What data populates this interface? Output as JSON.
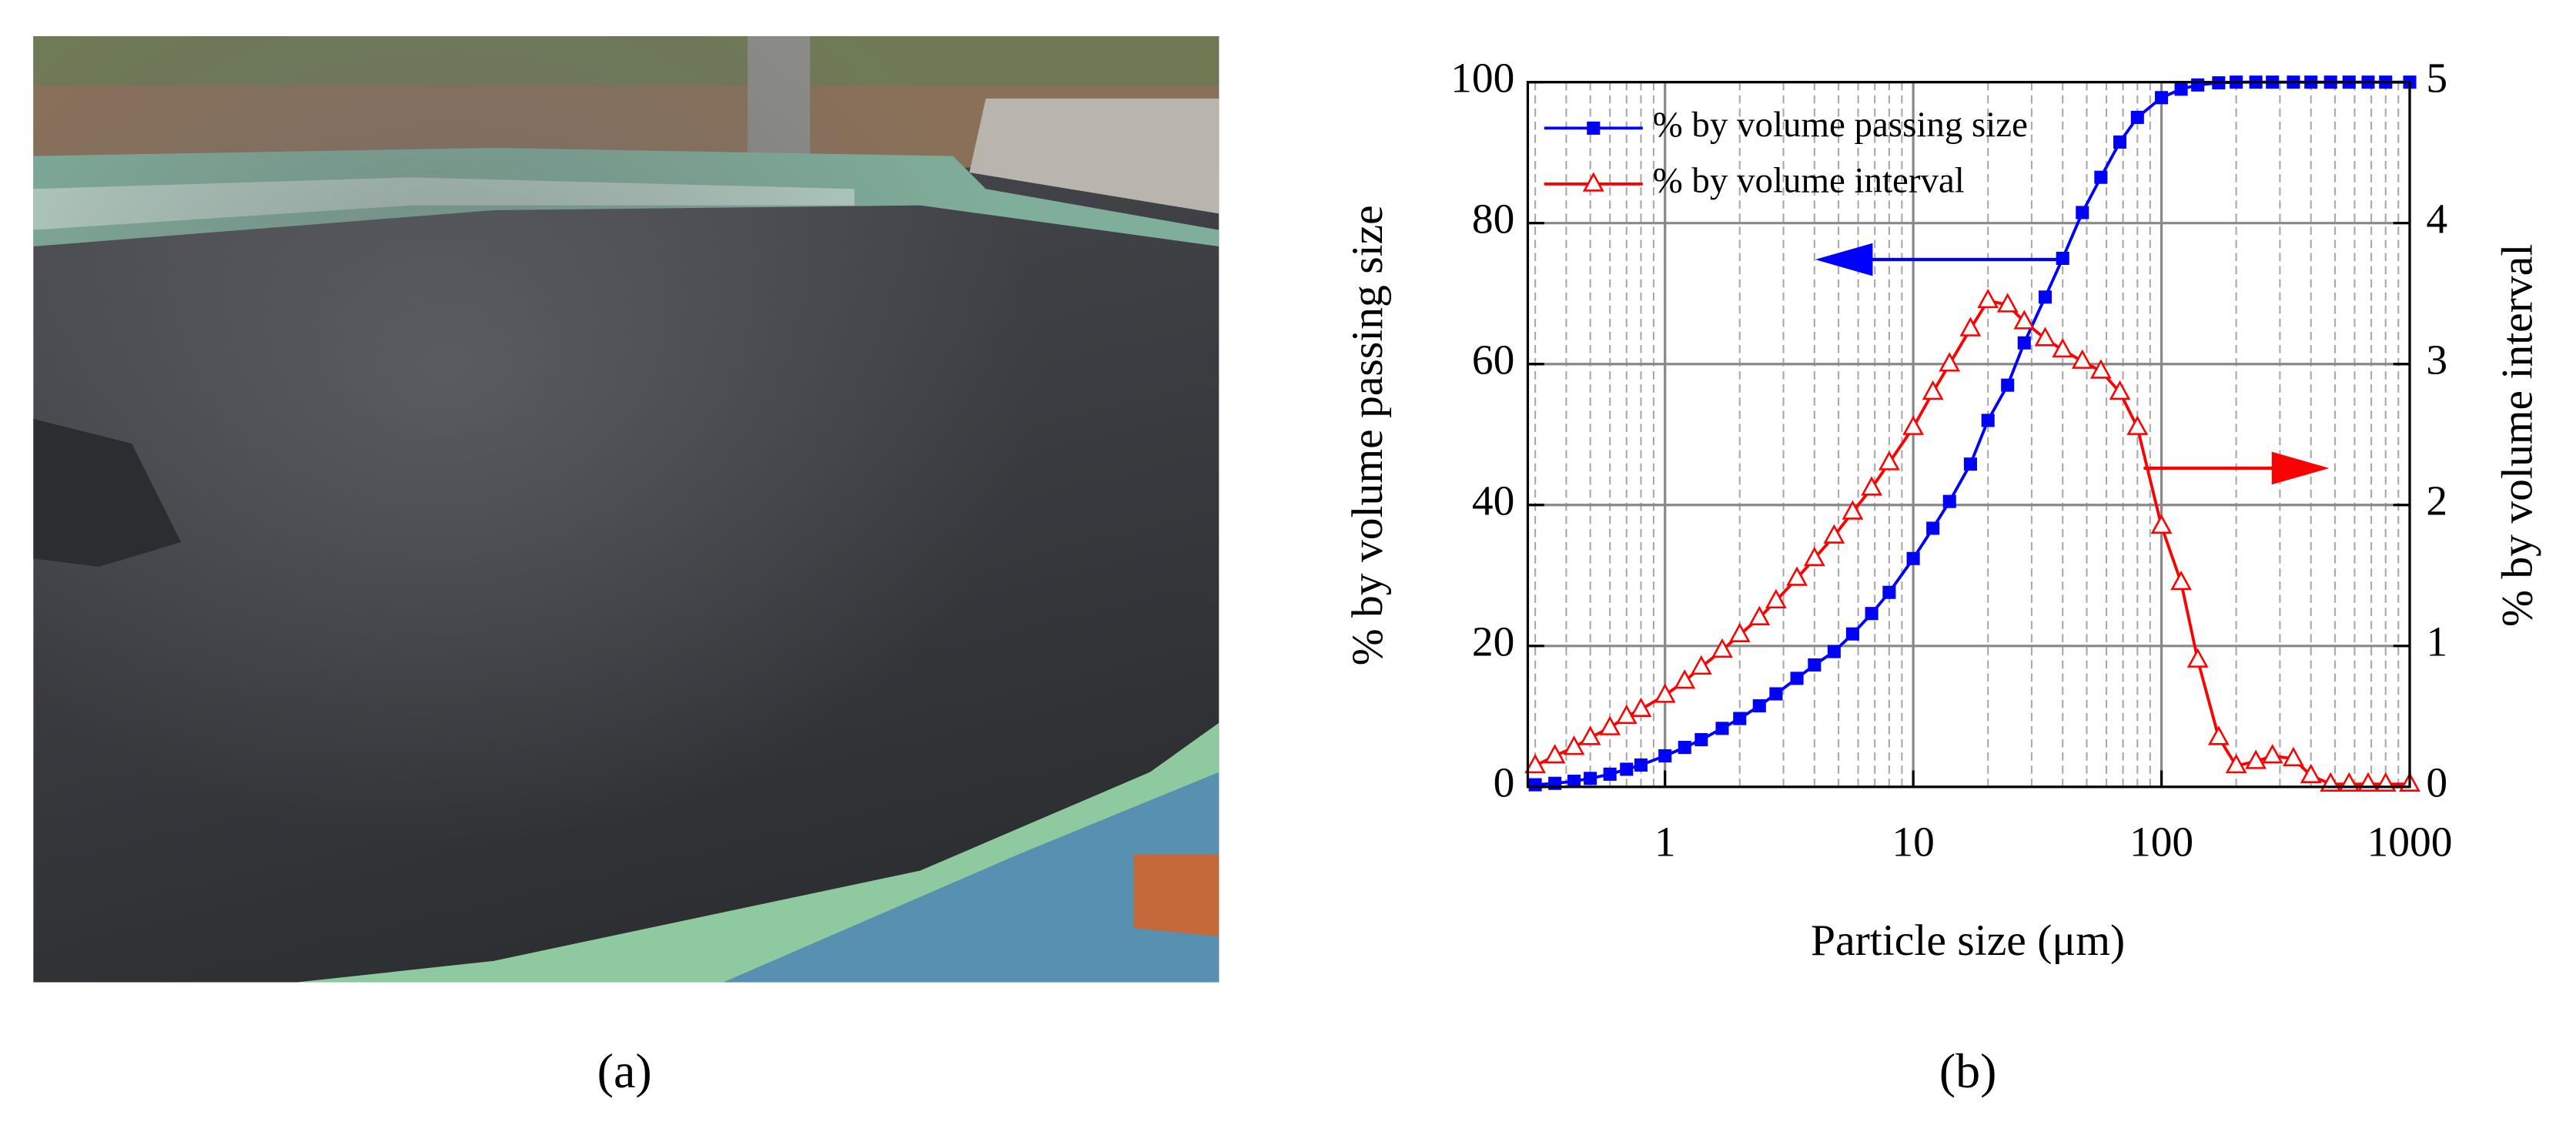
{
  "chart_data": {
    "type": "line",
    "xlabel": "Particle size (μm)",
    "ylabel": "% by volume passing size",
    "y2label": "% by volume interval",
    "xscale": "log",
    "xlim": [
      0.28,
      1000
    ],
    "xticks": [
      1,
      10,
      100,
      1000
    ],
    "xminorticks": [
      0.3,
      0.4,
      0.5,
      0.6,
      0.7,
      0.8,
      0.9,
      2,
      3,
      4,
      5,
      6,
      7,
      8,
      9,
      20,
      30,
      40,
      50,
      60,
      70,
      80,
      90,
      200,
      300,
      400,
      500,
      600,
      700,
      800,
      900
    ],
    "ylim": [
      0,
      100
    ],
    "yticks": [
      0,
      20,
      40,
      60,
      80,
      100
    ],
    "y2lim": [
      0,
      5
    ],
    "y2ticks": [
      0,
      1,
      2,
      3,
      4,
      5
    ],
    "grid": true,
    "legend": "upper left",
    "x": [
      0.3,
      0.36,
      0.43,
      0.5,
      0.6,
      0.7,
      0.8,
      1,
      1.2,
      1.4,
      1.7,
      2,
      2.4,
      2.8,
      3.4,
      4,
      4.8,
      5.7,
      6.8,
      8,
      10,
      12,
      14,
      17,
      20,
      24,
      28,
      34,
      40,
      48,
      57,
      68,
      80,
      100,
      120,
      140,
      170,
      200,
      240,
      280,
      340,
      400,
      480,
      570,
      680,
      800,
      1000
    ],
    "series": [
      {
        "name": "% by volume passing size",
        "color": "#0000ff",
        "marker": "square",
        "values": [
          0.3,
          0.5,
          0.8,
          1.2,
          1.8,
          2.5,
          3.1,
          4.4,
          5.6,
          6.7,
          8.3,
          9.7,
          11.5,
          13.2,
          15.4,
          17.3,
          19.2,
          21.7,
          24.6,
          27.6,
          32.4,
          36.7,
          40.5,
          45.8,
          52,
          57,
          63,
          69.5,
          75,
          81.5,
          86.5,
          91.5,
          95,
          97.8,
          99,
          99.6,
          99.9,
          100,
          100,
          100,
          100,
          100,
          100,
          100,
          100,
          100,
          100
        ]
      },
      {
        "name": "% by volume interval",
        "color": "#ff0000",
        "marker": "triangle",
        "axis": "y2",
        "values": [
          0.15,
          0.22,
          0.28,
          0.35,
          0.42,
          0.5,
          0.55,
          0.65,
          0.75,
          0.85,
          0.97,
          1.08,
          1.2,
          1.32,
          1.48,
          1.62,
          1.78,
          1.95,
          2.12,
          2.3,
          2.55,
          2.8,
          3.0,
          3.25,
          3.45,
          3.42,
          3.3,
          3.18,
          3.1,
          3.02,
          2.95,
          2.8,
          2.55,
          1.85,
          1.45,
          0.9,
          0.35,
          0.15,
          0.18,
          0.22,
          0.2,
          0.08,
          0.02,
          0.02,
          0.02,
          0.02,
          0.02
        ]
      }
    ]
  },
  "captions": [
    "(a)",
    "(b)"
  ]
}
